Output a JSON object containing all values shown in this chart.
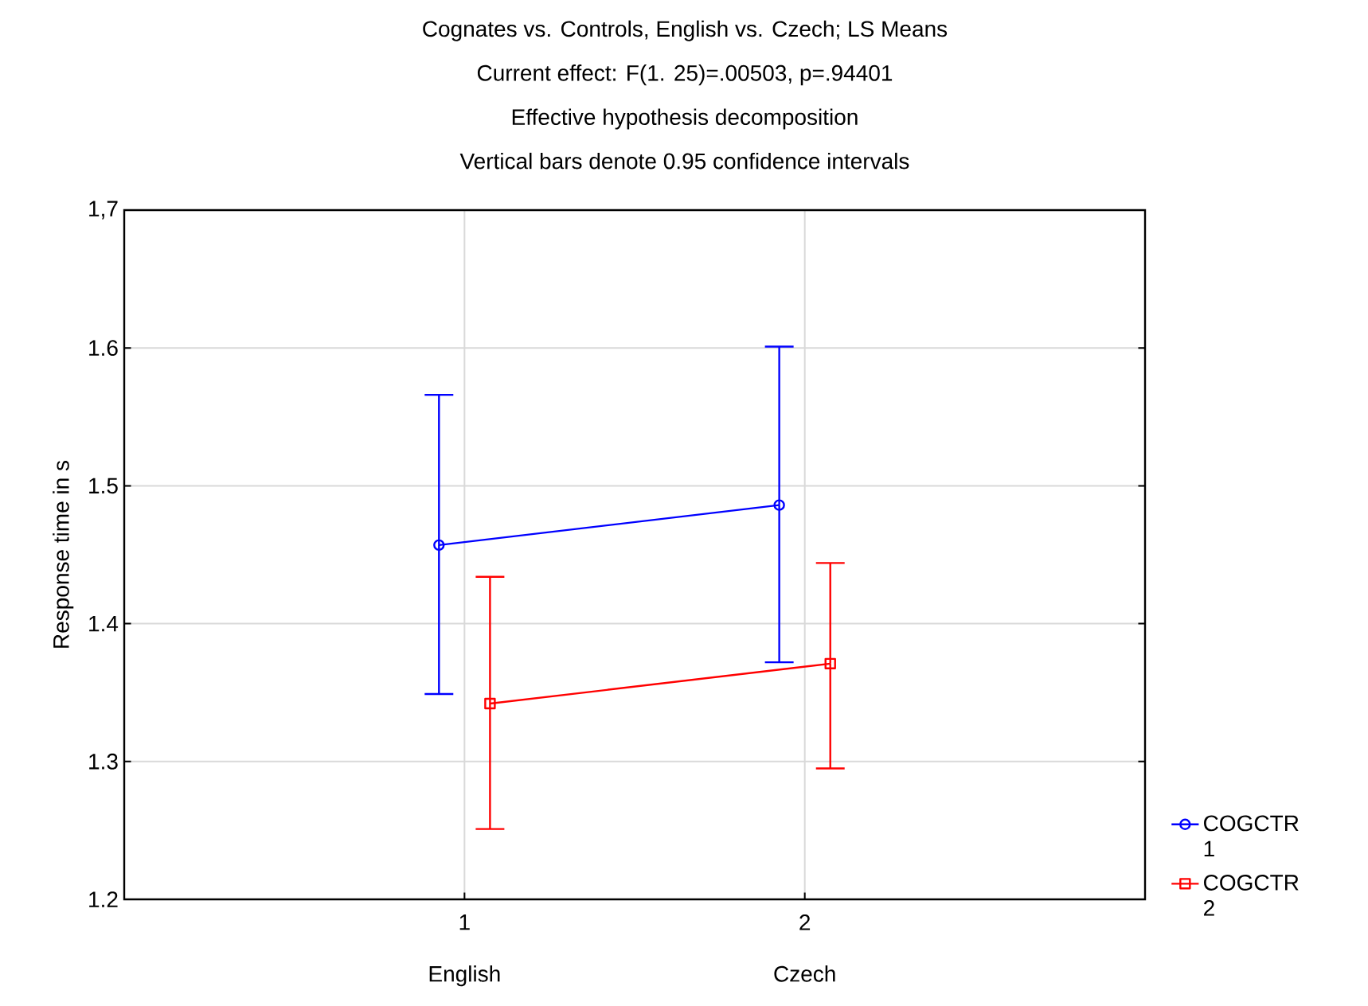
{
  "chart_data": {
    "type": "line",
    "title": "Cognates vs. Controls, English vs. Czech; LS Means",
    "subtitle": "Current effect: F(1. 25)=.00503, p=.94401",
    "annotations": [
      "Effective hypothesis decomposition",
      "Vertical bars denote 0.95 confidence intervals",
      "English",
      "Czech"
    ],
    "ylabel": "Response time in s",
    "xlim": [
      0,
      3
    ],
    "xticks": [
      1,
      2
    ],
    "ylim": [
      1.2,
      1.7
    ],
    "yticks": [
      1.2,
      1.3,
      1.4,
      1.5,
      1.6,
      {
        "value": 1.7,
        "label": "1,7"
      }
    ],
    "grid": true,
    "legend": "bottom right",
    "series": [
      {
        "name": "COGCTR 1",
        "color": "#0000ff",
        "marker": "circle",
        "x": [
          0.925,
          1.925
        ],
        "values": [
          1.457,
          1.486
        ],
        "errors": [
          [
            1.349,
            1.566
          ],
          [
            1.372,
            1.601
          ]
        ]
      },
      {
        "name": "COGCTR 2",
        "color": "#ff0000",
        "marker": "square",
        "x": [
          1.075,
          2.075
        ],
        "values": [
          1.342,
          1.371
        ],
        "errors": [
          [
            1.251,
            1.434
          ],
          [
            1.295,
            1.444
          ]
        ]
      }
    ]
  }
}
